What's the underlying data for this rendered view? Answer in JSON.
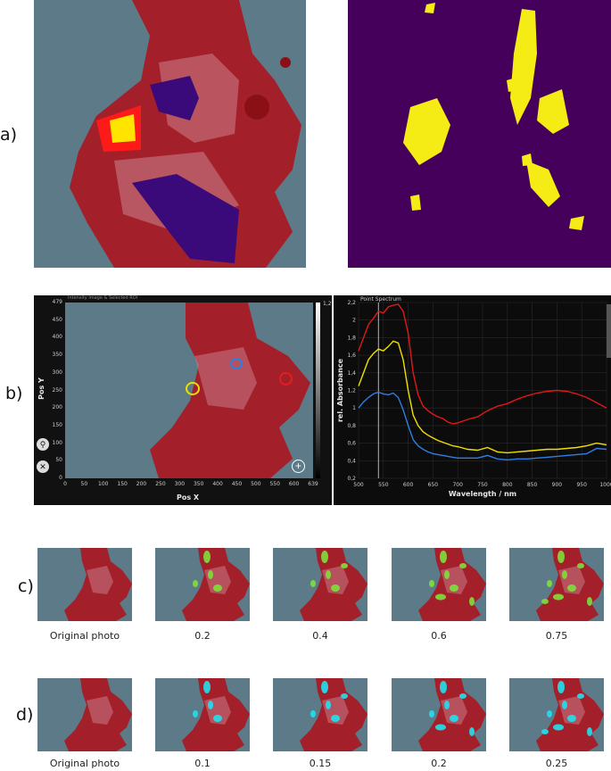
{
  "row_labels": {
    "a": "a)",
    "b": "b)",
    "c": "c)",
    "d": "d)"
  },
  "b_left": {
    "title": "Intensity image & Selected ROI",
    "ylabel": "Pos Y",
    "xlabel": "Pos X",
    "y_ticks": [
      "479",
      "450",
      "400",
      "350",
      "300",
      "250",
      "200",
      "150",
      "100",
      "50",
      "0"
    ],
    "x_ticks": [
      "0",
      "50",
      "100",
      "150",
      "200",
      "250",
      "300",
      "350",
      "400",
      "450",
      "500",
      "550",
      "600",
      "639"
    ],
    "colorbar_top": "1,2",
    "colors": {
      "yellow": "#e8e000",
      "blue": "#2f7fe0",
      "red": "#e02020"
    }
  },
  "b_right": {
    "title": "Point Spectrum",
    "icons": [
      "zoom-button-icon",
      "remove-button-icon",
      "add-roi-icon"
    ]
  },
  "chart_data": {
    "type": "line",
    "title": "Point Spectrum",
    "xlabel": "Wavelength / nm",
    "ylabel": "rel. Absorbance",
    "xlim": [
      500,
      1000
    ],
    "ylim": [
      0.2,
      2.2
    ],
    "x_ticks": [
      "500",
      "550",
      "600",
      "650",
      "700",
      "750",
      "800",
      "850",
      "900",
      "950",
      "1000"
    ],
    "y_ticks": [
      "0,2",
      "0,4",
      "0,6",
      "0,8",
      "1",
      "1,2",
      "1,4",
      "1,6",
      "1,8",
      "2",
      "2,2"
    ],
    "grid": true,
    "marker_line_x": 540,
    "x": [
      500,
      510,
      520,
      530,
      540,
      550,
      560,
      570,
      580,
      590,
      600,
      610,
      620,
      630,
      640,
      650,
      660,
      670,
      680,
      690,
      700,
      720,
      740,
      760,
      780,
      800,
      820,
      840,
      860,
      880,
      900,
      920,
      940,
      960,
      980,
      1000
    ],
    "series": [
      {
        "color": "#e01818",
        "values": [
          1.65,
          1.8,
          1.95,
          2.02,
          2.1,
          2.08,
          2.15,
          2.17,
          2.18,
          2.1,
          1.85,
          1.4,
          1.15,
          1.02,
          0.97,
          0.93,
          0.9,
          0.88,
          0.84,
          0.82,
          0.83,
          0.87,
          0.9,
          0.97,
          1.02,
          1.05,
          1.1,
          1.14,
          1.17,
          1.19,
          1.2,
          1.19,
          1.16,
          1.12,
          1.06,
          1.0
        ]
      },
      {
        "color": "#f0e000",
        "values": [
          1.25,
          1.4,
          1.55,
          1.62,
          1.67,
          1.65,
          1.7,
          1.76,
          1.74,
          1.55,
          1.2,
          0.92,
          0.8,
          0.73,
          0.69,
          0.66,
          0.63,
          0.61,
          0.59,
          0.57,
          0.56,
          0.53,
          0.52,
          0.55,
          0.5,
          0.49,
          0.5,
          0.51,
          0.52,
          0.53,
          0.53,
          0.54,
          0.55,
          0.57,
          0.6,
          0.58
        ]
      },
      {
        "color": "#2f7fe0",
        "values": [
          1.0,
          1.07,
          1.12,
          1.16,
          1.18,
          1.16,
          1.15,
          1.17,
          1.12,
          0.98,
          0.8,
          0.64,
          0.57,
          0.53,
          0.5,
          0.48,
          0.47,
          0.46,
          0.45,
          0.44,
          0.43,
          0.43,
          0.43,
          0.46,
          0.42,
          0.41,
          0.42,
          0.42,
          0.43,
          0.44,
          0.45,
          0.46,
          0.47,
          0.48,
          0.54,
          0.53
        ]
      }
    ]
  },
  "row_c": {
    "captions": [
      "Original photo",
      "0.2",
      "0.4",
      "0.6",
      "0.75"
    ],
    "overlay_color": "#7de03a"
  },
  "row_d": {
    "captions": [
      "Original photo",
      "0.1",
      "0.15",
      "0.2",
      "0.25"
    ],
    "overlay_color": "#20e0ef"
  },
  "colors": {
    "tissue": "#a8202a",
    "background": "#5f7d8b",
    "mask_bg": "#44005a",
    "mask_fg": "#f4ec14",
    "roi_purple": "#3a0a7a",
    "roi_red": "#ff1a1a",
    "roi_yellow": "#ffe400"
  }
}
